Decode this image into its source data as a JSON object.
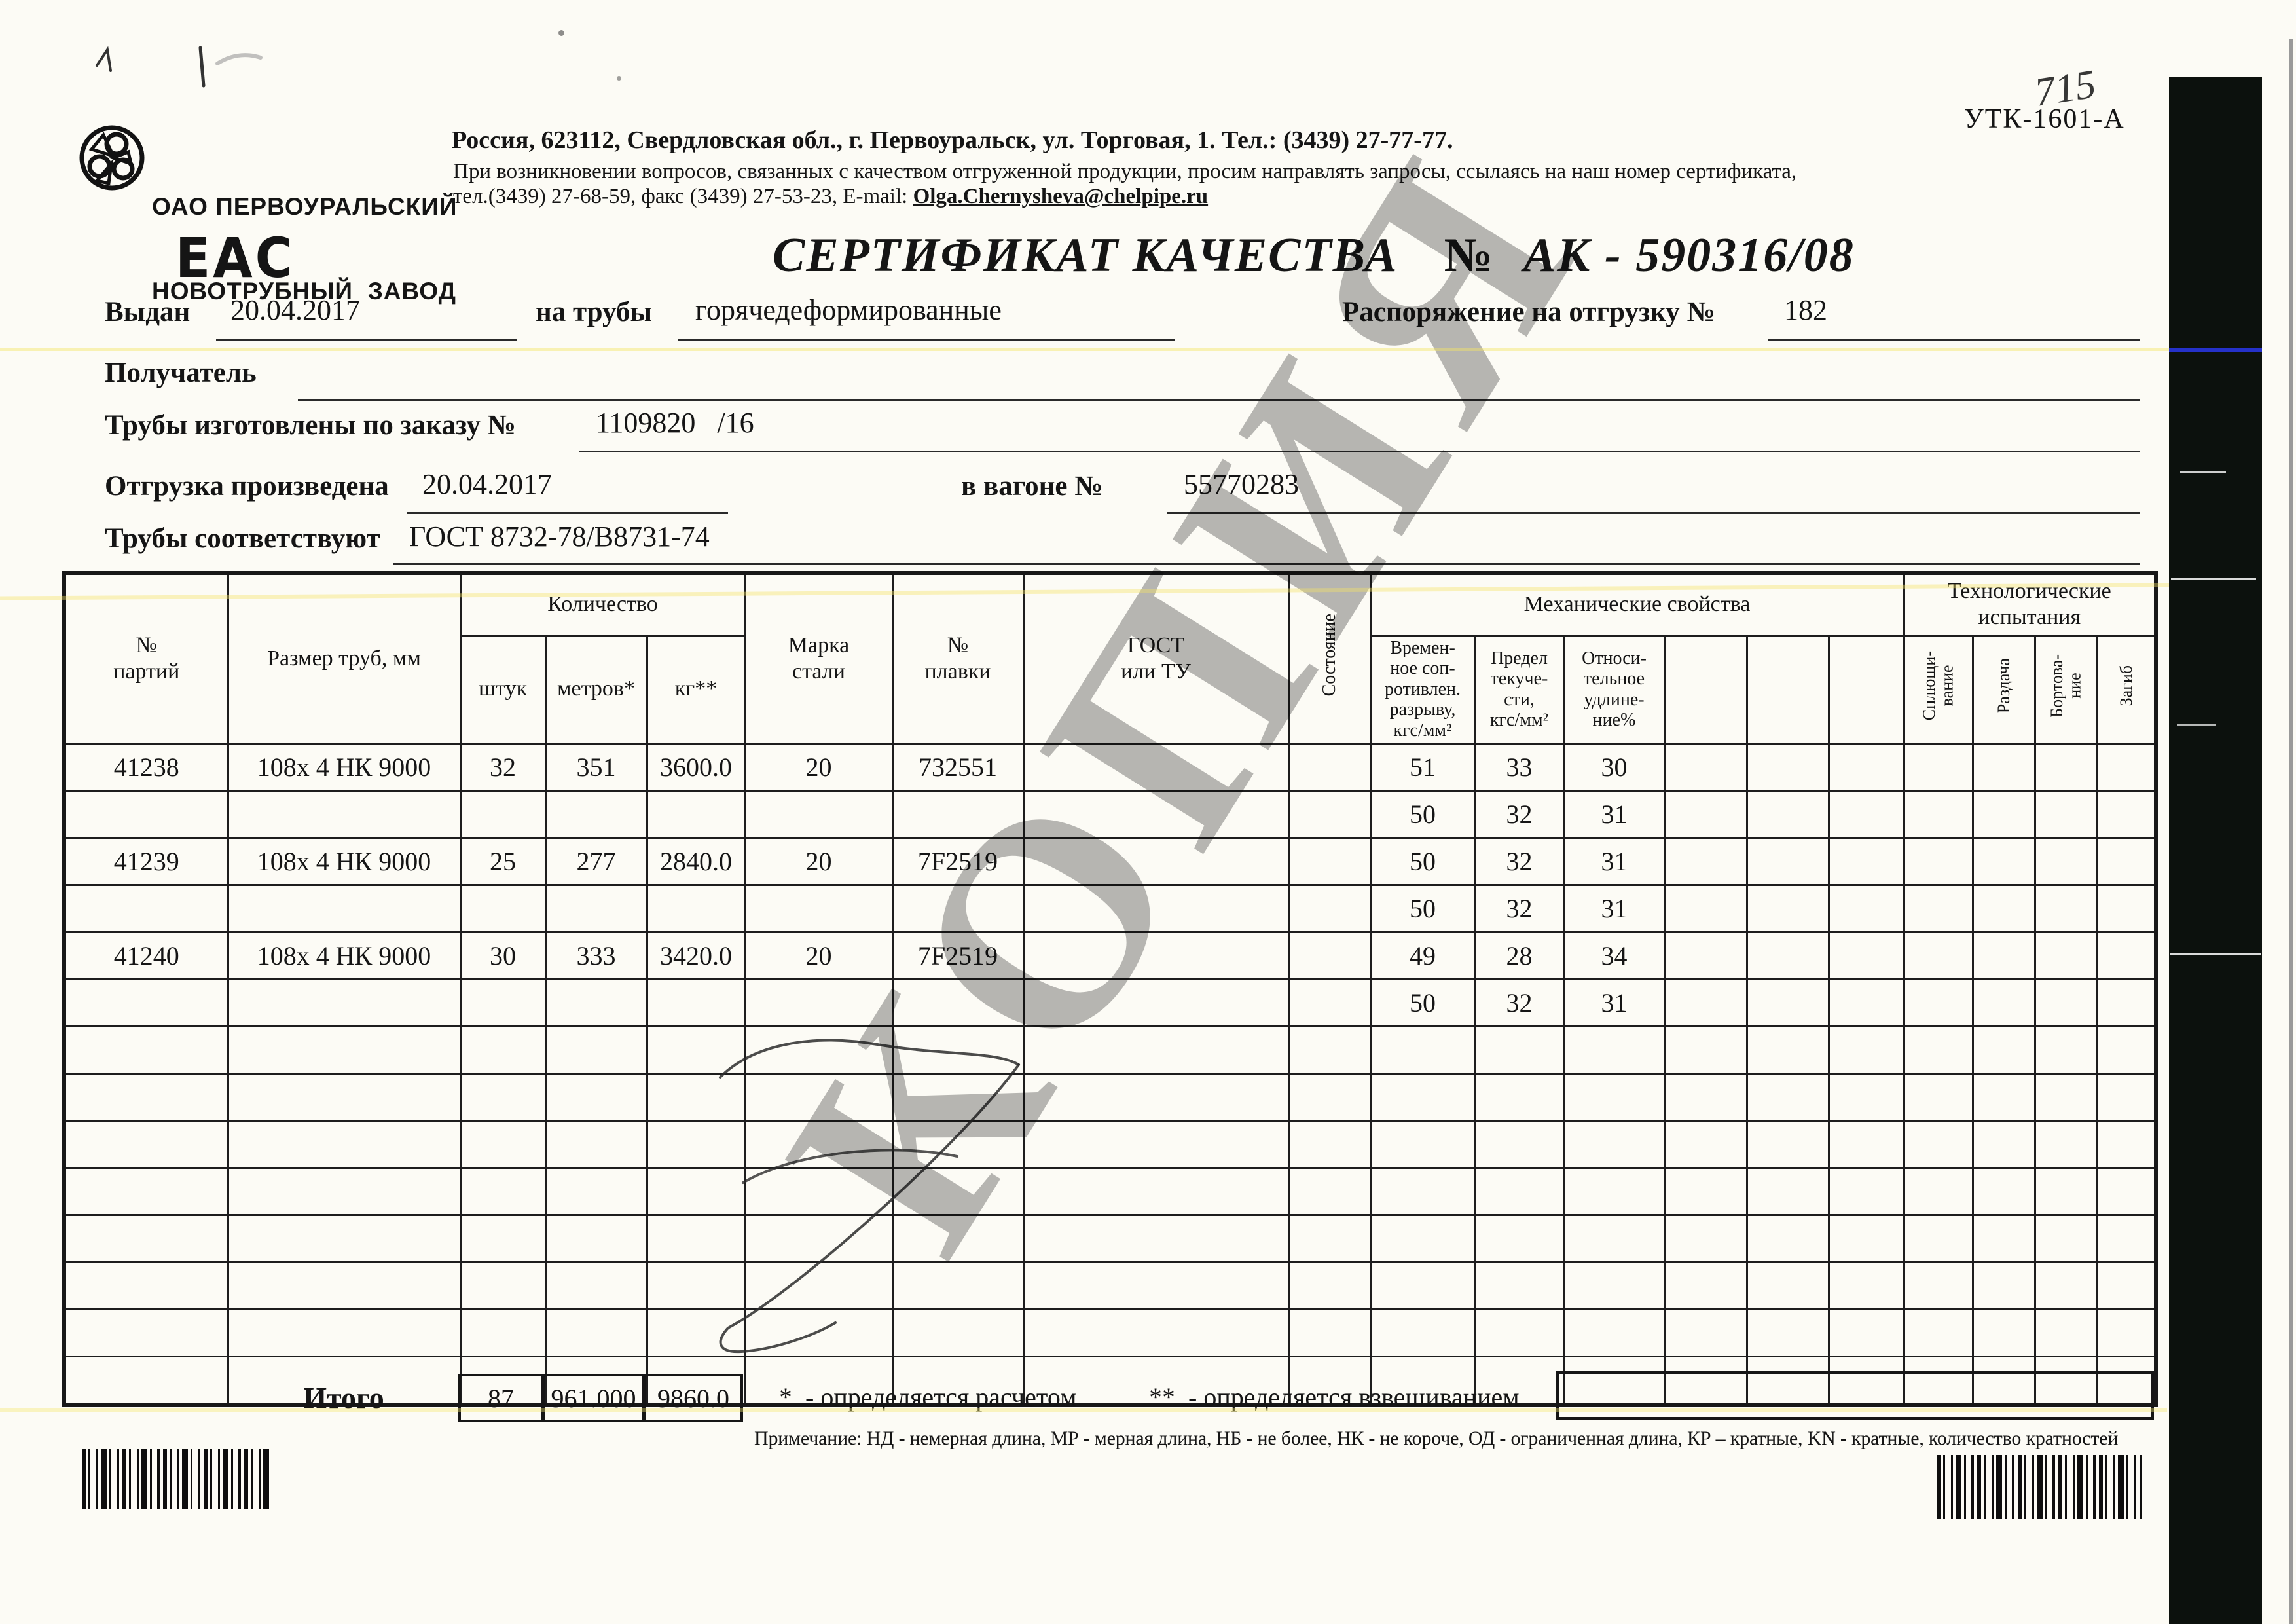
{
  "corner": {
    "handwritten": "715",
    "code": "УТК-1601-А"
  },
  "header": {
    "logo_line1": "ОАО ПЕРВОУРАЛЬСКИЙ",
    "logo_line2": "НОВОТРУБНЫЙ  ЗАВОД",
    "eac_label": "ЕАС",
    "address_bold": "Россия, 623112, Свердловская обл., г. Первоуральск, ул. Торговая, 1. Тел.: (3439) 27-77-77.",
    "address_line2": "При возникновении вопросов, связанных с качеством отгруженной продукции, просим направлять запросы, ссылаясь на наш номер сертификата,",
    "address_line3_prefix": "тел.(3439) 27-68-59, факс (3439) 27-53-23,  E-mail: ",
    "address_email": "Olga.Chernysheva@chelpipe.ru"
  },
  "title": {
    "label": "СЕРТИФИКАТ КАЧЕСТВА",
    "no_sign": "№",
    "number": "АК -  590316/08"
  },
  "fields": {
    "issued_label": "Выдан",
    "issued_value": "20.04.2017",
    "pipes_label": "на трубы",
    "pipes_value": "горячедеформированные",
    "order_shipment_label": "Распоряжение на отгрузку №",
    "order_shipment_value": "182",
    "receiver_label": "Получатель",
    "made_by_order_label": "Трубы изготовлены по заказу №",
    "made_by_order_value": "1109820   /16",
    "shipped_label": "Отгрузка произведена",
    "shipped_value": "20.04.2017",
    "wagon_label": "в вагоне №",
    "wagon_value": "55770283",
    "conform_label": "Трубы соответствуют",
    "conform_value": "ГОСТ 8732-78/В8731-74"
  },
  "table": {
    "headers": {
      "batch": "№\nпартий",
      "size": "Размер труб, мм",
      "qty_group": "Количество",
      "qty_pcs": "штук",
      "qty_m": "метров*",
      "qty_kg": "кг**",
      "steel": "Марка\nстали",
      "heat": "№\nплавки",
      "gost": "ГОСТ\nили ТУ",
      "state": "Состояние",
      "mech_group": "Механические свойства",
      "mech_1": "Времен-\nное соп-\nротивлен.\nразрыву,\nкгс/мм²",
      "mech_2": "Предел\nтекуче-\nсти,\nкгс/мм²",
      "mech_3": "Относи-\nтельное\nудлине-\nние%",
      "tech_group": "Технологические\nиспытания",
      "tech_1": "Сплющи-\nвание",
      "tech_2": "Раздача",
      "tech_3": "Бортова-\nние",
      "tech_4": "Загиб"
    },
    "rows": [
      {
        "batch": "41238",
        "size": "108x 4 НК 9000",
        "pcs": "32",
        "m": "351",
        "kg": "3600.0",
        "steel": "20",
        "heat": "732551",
        "r1": "51",
        "r2": "33",
        "r3": "30"
      },
      {
        "r1": "50",
        "r2": "32",
        "r3": "31"
      },
      {
        "batch": "41239",
        "size": "108x 4 НК 9000",
        "pcs": "25",
        "m": "277",
        "kg": "2840.0",
        "steel": "20",
        "heat": "7F2519",
        "r1": "50",
        "r2": "32",
        "r3": "31"
      },
      {
        "r1": "50",
        "r2": "32",
        "r3": "31"
      },
      {
        "batch": "41240",
        "size": "108x 4 НК 9000",
        "pcs": "30",
        "m": "333",
        "kg": "3420.0",
        "steel": "20",
        "heat": "7F2519",
        "r1": "49",
        "r2": "28",
        "r3": "34"
      },
      {
        "r1": "50",
        "r2": "32",
        "r3": "31"
      },
      {},
      {},
      {},
      {},
      {},
      {},
      {},
      {}
    ]
  },
  "footer": {
    "total_label": "Итого",
    "total_pcs": "87",
    "total_m": "961.000",
    "total_kg": "9860.0",
    "footnote_calc": "*  - определяется расчетом",
    "footnote_weigh": "**  - определяется взвешиванием",
    "note": "Примечание: НД - немерная длина, МР - мерная длина, НБ - не более, НК - не короче, ОД - ограниченная длина, КР – кратные, KN - кратные, количество кратностей"
  },
  "watermark": {
    "text": "КОПИЯ",
    "color": "#7d7d7d"
  },
  "scan": {
    "strip_color": "#0c110d",
    "blue_line_color": "#2531c9",
    "streak_color": "#f5e464"
  }
}
